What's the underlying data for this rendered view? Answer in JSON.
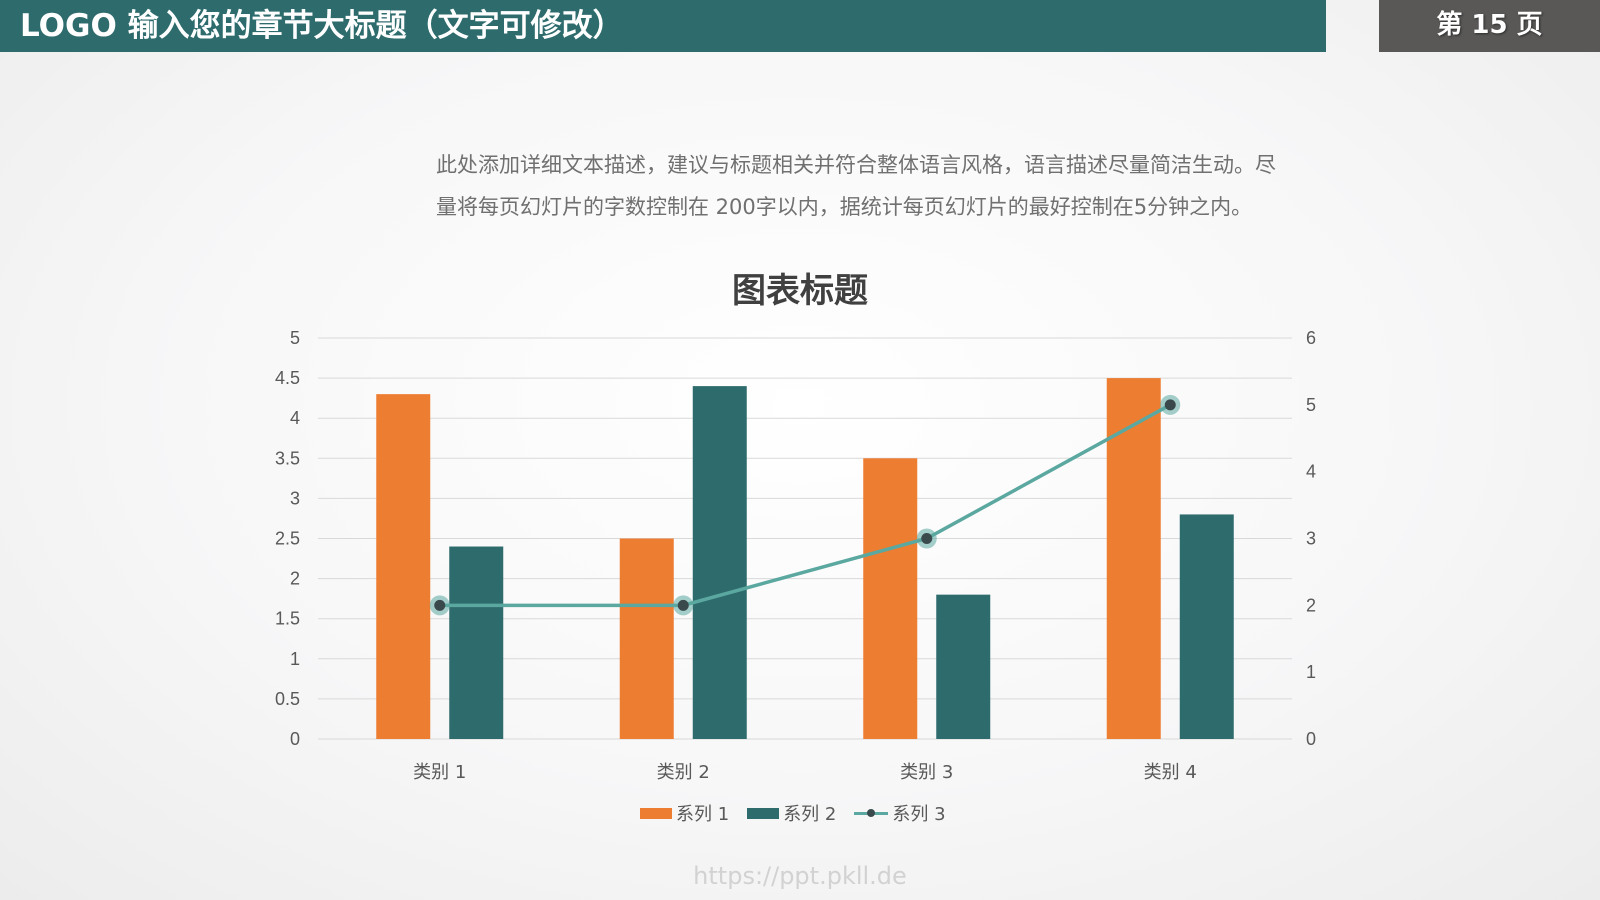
{
  "header": {
    "title": "LOGO  输入您的章节大标题（文字可修改）",
    "page_label": "第 15 页"
  },
  "description": {
    "line1": "此处添加详细文本描述，建议与标题相关并符合整体语言风格，语言描述尽量简洁生动。尽",
    "line2": "量将每页幻灯片的字数控制在  200字以内，据统计每页幻灯片的最好控制在5分钟之内。"
  },
  "watermark": "https://ppt.pkll.de",
  "colors": {
    "header_bg": "#2e6b6d",
    "page_box_bg": "#595856",
    "series1": "#ed7d31",
    "series2": "#2e6b6d",
    "series3": "#5ba8a0"
  },
  "chart_data": {
    "type": "bar",
    "title": "图表标题",
    "categories": [
      "类别 1",
      "类别 2",
      "类别 3",
      "类别 4"
    ],
    "series": [
      {
        "name": "系列 1",
        "type": "bar",
        "axis": "left",
        "color": "#ed7d31",
        "values": [
          4.3,
          2.5,
          3.5,
          4.5
        ]
      },
      {
        "name": "系列 2",
        "type": "bar",
        "axis": "left",
        "color": "#2e6b6d",
        "values": [
          2.4,
          4.4,
          1.8,
          2.8
        ]
      },
      {
        "name": "系列 3",
        "type": "line",
        "axis": "right",
        "color": "#5ba8a0",
        "values": [
          2,
          2,
          3,
          5
        ]
      }
    ],
    "left_axis": {
      "ylim": [
        0,
        5
      ],
      "ticks": [
        "0",
        "0.5",
        "1",
        "1.5",
        "2",
        "2.5",
        "3",
        "3.5",
        "4",
        "4.5",
        "5"
      ]
    },
    "right_axis": {
      "ylim": [
        0,
        6
      ],
      "ticks": [
        "0",
        "1",
        "2",
        "3",
        "4",
        "5",
        "6"
      ]
    },
    "xlabel": "",
    "ylabel": "",
    "grid": true,
    "legend_position": "bottom"
  }
}
